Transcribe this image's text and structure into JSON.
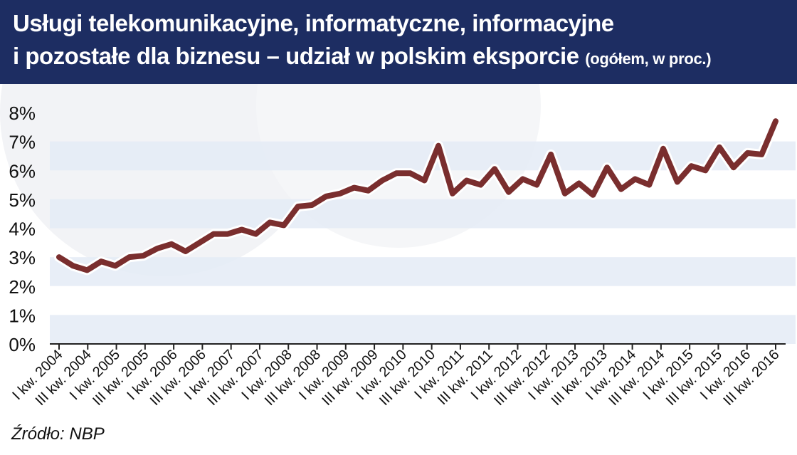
{
  "header": {
    "title_line1": "Usługi telekomunikacyjne, informatyczne, informacyjne",
    "title_line2": "i pozostałe dla biznesu – udział w polskim eksporcie",
    "subtitle": "(ogółem, w proc.)"
  },
  "source": "Źródło: NBP",
  "colors": {
    "header_bg": "#1d2d62",
    "band": "#e4ebf6",
    "line": "#7a2e2e",
    "line_halo": "#ffffff"
  },
  "chart_data": {
    "type": "line",
    "title": "Usługi telekomunikacyjne, informatyczne, informacyjne i pozostałe dla biznesu – udział w polskim eksporcie (ogółem, w proc.)",
    "xlabel": "",
    "ylabel": "",
    "ylim": [
      0,
      8
    ],
    "y_ticks": [
      "0%",
      "1%",
      "2%",
      "3%",
      "4%",
      "5%",
      "6%",
      "7%",
      "8%"
    ],
    "grid": "alternating horizontal bands",
    "x_labels": [
      "I kw. 2004",
      "III kw. 2004",
      "I kw. 2005",
      "III kw. 2005",
      "I kw. 2006",
      "III kw. 2006",
      "I kw. 2007",
      "III kw. 2007",
      "I kw. 2008",
      "III kw. 2008",
      "I kw. 2009",
      "III kw. 2009",
      "I kw. 2010",
      "III kw. 2010",
      "I kw. 2011",
      "III kw. 2011",
      "I kw. 2012",
      "III kw. 2012",
      "I kw. 2013",
      "III kw. 2013",
      "I kw. 2014",
      "III kw. 2014",
      "I kw. 2015",
      "III kw. 2015",
      "I kw. 2016",
      "III kw. 2016"
    ],
    "series": [
      {
        "values": [
          3.0,
          2.7,
          2.55,
          2.85,
          2.7,
          3.0,
          3.05,
          3.3,
          3.45,
          3.2,
          3.5,
          3.8,
          3.8,
          3.95,
          3.8,
          4.2,
          4.1,
          4.75,
          4.8,
          5.1,
          5.2,
          5.4,
          5.3,
          5.65,
          5.9,
          5.9,
          5.65,
          6.85,
          5.2,
          5.65,
          5.5,
          6.05,
          5.25,
          5.7,
          5.5,
          6.55,
          5.2,
          5.55,
          5.15,
          6.1,
          5.35,
          5.7,
          5.5,
          6.75,
          5.6,
          6.15,
          6.0,
          6.8,
          6.1,
          6.6,
          6.55,
          7.7
        ]
      }
    ]
  }
}
